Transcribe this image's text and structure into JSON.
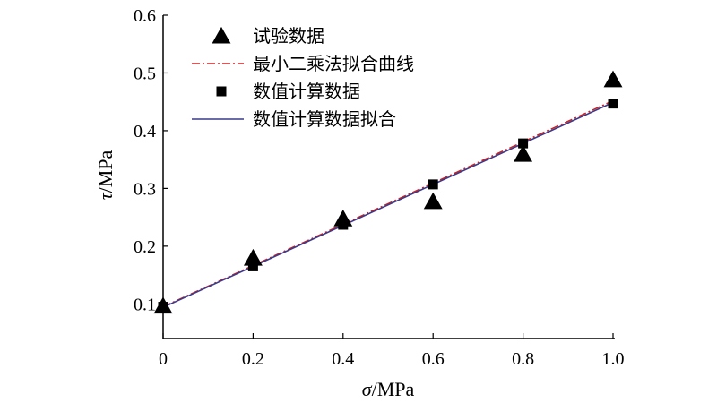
{
  "chart_data": {
    "type": "scatter",
    "xlabel_symbol": "σ",
    "xlabel_unit": "/MPa",
    "ylabel_symbol": "τ",
    "ylabel_unit": "/MPa",
    "xlim": [
      0,
      1.0
    ],
    "ylim": [
      0.04,
      0.6
    ],
    "x_ticks": [
      "0",
      "0.2",
      "0.4",
      "0.6",
      "0.8",
      "1.0"
    ],
    "y_ticks": [
      "0.1",
      "0.2",
      "0.3",
      "0.4",
      "0.5",
      "0.6"
    ],
    "grid": false,
    "legend_position": "top-left",
    "series": [
      {
        "name": "试验数据",
        "kind": "marker",
        "marker": "triangle",
        "color": "#000000",
        "x": [
          0,
          0.2,
          0.4,
          0.6,
          0.8,
          1.0
        ],
        "y": [
          0.095,
          0.178,
          0.246,
          0.276,
          0.358,
          0.487
        ]
      },
      {
        "name": "最小二乘法拟合曲线",
        "kind": "line",
        "style": "dash-dot",
        "color": "#cc2222",
        "x": [
          0,
          1.0
        ],
        "y": [
          0.095,
          0.452
        ]
      },
      {
        "name": "数值计算数据",
        "kind": "marker",
        "marker": "square",
        "color": "#000000",
        "x": [
          0,
          0.2,
          0.4,
          0.6,
          0.8,
          1.0
        ],
        "y": [
          0.095,
          0.165,
          0.237,
          0.307,
          0.378,
          0.447
        ]
      },
      {
        "name": "数值计算数据拟合",
        "kind": "line",
        "style": "solid",
        "color": "#3a3a8c",
        "x": [
          0,
          1.0
        ],
        "y": [
          0.094,
          0.449
        ]
      }
    ]
  }
}
